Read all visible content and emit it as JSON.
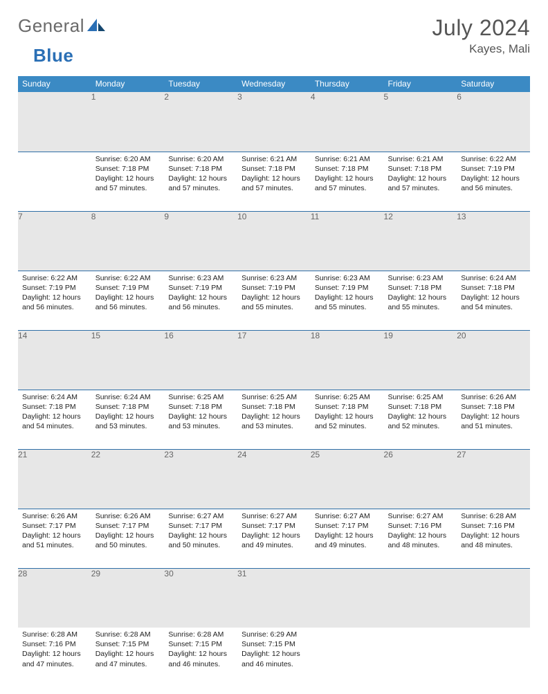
{
  "brand": {
    "part1": "General",
    "part2": "Blue"
  },
  "title": {
    "month_year": "July 2024",
    "location": "Kayes, Mali"
  },
  "colors": {
    "header_bg": "#3b8ac4",
    "daynum_bg": "#e7e7e7",
    "rule": "#2e6ea6",
    "text": "#222222",
    "muted": "#666666",
    "brand_blue": "#2a6fb5"
  },
  "day_headers": [
    "Sunday",
    "Monday",
    "Tuesday",
    "Wednesday",
    "Thursday",
    "Friday",
    "Saturday"
  ],
  "weeks": [
    [
      null,
      {
        "n": "1",
        "sr": "6:20 AM",
        "ss": "7:18 PM",
        "dl": "12 hours and 57 minutes."
      },
      {
        "n": "2",
        "sr": "6:20 AM",
        "ss": "7:18 PM",
        "dl": "12 hours and 57 minutes."
      },
      {
        "n": "3",
        "sr": "6:21 AM",
        "ss": "7:18 PM",
        "dl": "12 hours and 57 minutes."
      },
      {
        "n": "4",
        "sr": "6:21 AM",
        "ss": "7:18 PM",
        "dl": "12 hours and 57 minutes."
      },
      {
        "n": "5",
        "sr": "6:21 AM",
        "ss": "7:18 PM",
        "dl": "12 hours and 57 minutes."
      },
      {
        "n": "6",
        "sr": "6:22 AM",
        "ss": "7:19 PM",
        "dl": "12 hours and 56 minutes."
      }
    ],
    [
      {
        "n": "7",
        "sr": "6:22 AM",
        "ss": "7:19 PM",
        "dl": "12 hours and 56 minutes."
      },
      {
        "n": "8",
        "sr": "6:22 AM",
        "ss": "7:19 PM",
        "dl": "12 hours and 56 minutes."
      },
      {
        "n": "9",
        "sr": "6:23 AM",
        "ss": "7:19 PM",
        "dl": "12 hours and 56 minutes."
      },
      {
        "n": "10",
        "sr": "6:23 AM",
        "ss": "7:19 PM",
        "dl": "12 hours and 55 minutes."
      },
      {
        "n": "11",
        "sr": "6:23 AM",
        "ss": "7:19 PM",
        "dl": "12 hours and 55 minutes."
      },
      {
        "n": "12",
        "sr": "6:23 AM",
        "ss": "7:18 PM",
        "dl": "12 hours and 55 minutes."
      },
      {
        "n": "13",
        "sr": "6:24 AM",
        "ss": "7:18 PM",
        "dl": "12 hours and 54 minutes."
      }
    ],
    [
      {
        "n": "14",
        "sr": "6:24 AM",
        "ss": "7:18 PM",
        "dl": "12 hours and 54 minutes."
      },
      {
        "n": "15",
        "sr": "6:24 AM",
        "ss": "7:18 PM",
        "dl": "12 hours and 53 minutes."
      },
      {
        "n": "16",
        "sr": "6:25 AM",
        "ss": "7:18 PM",
        "dl": "12 hours and 53 minutes."
      },
      {
        "n": "17",
        "sr": "6:25 AM",
        "ss": "7:18 PM",
        "dl": "12 hours and 53 minutes."
      },
      {
        "n": "18",
        "sr": "6:25 AM",
        "ss": "7:18 PM",
        "dl": "12 hours and 52 minutes."
      },
      {
        "n": "19",
        "sr": "6:25 AM",
        "ss": "7:18 PM",
        "dl": "12 hours and 52 minutes."
      },
      {
        "n": "20",
        "sr": "6:26 AM",
        "ss": "7:18 PM",
        "dl": "12 hours and 51 minutes."
      }
    ],
    [
      {
        "n": "21",
        "sr": "6:26 AM",
        "ss": "7:17 PM",
        "dl": "12 hours and 51 minutes."
      },
      {
        "n": "22",
        "sr": "6:26 AM",
        "ss": "7:17 PM",
        "dl": "12 hours and 50 minutes."
      },
      {
        "n": "23",
        "sr": "6:27 AM",
        "ss": "7:17 PM",
        "dl": "12 hours and 50 minutes."
      },
      {
        "n": "24",
        "sr": "6:27 AM",
        "ss": "7:17 PM",
        "dl": "12 hours and 49 minutes."
      },
      {
        "n": "25",
        "sr": "6:27 AM",
        "ss": "7:17 PM",
        "dl": "12 hours and 49 minutes."
      },
      {
        "n": "26",
        "sr": "6:27 AM",
        "ss": "7:16 PM",
        "dl": "12 hours and 48 minutes."
      },
      {
        "n": "27",
        "sr": "6:28 AM",
        "ss": "7:16 PM",
        "dl": "12 hours and 48 minutes."
      }
    ],
    [
      {
        "n": "28",
        "sr": "6:28 AM",
        "ss": "7:16 PM",
        "dl": "12 hours and 47 minutes."
      },
      {
        "n": "29",
        "sr": "6:28 AM",
        "ss": "7:15 PM",
        "dl": "12 hours and 47 minutes."
      },
      {
        "n": "30",
        "sr": "6:28 AM",
        "ss": "7:15 PM",
        "dl": "12 hours and 46 minutes."
      },
      {
        "n": "31",
        "sr": "6:29 AM",
        "ss": "7:15 PM",
        "dl": "12 hours and 46 minutes."
      },
      null,
      null,
      null
    ]
  ],
  "labels": {
    "sunrise": "Sunrise:",
    "sunset": "Sunset:",
    "daylight": "Daylight:"
  },
  "typography": {
    "title_fontsize": 32,
    "location_fontsize": 17,
    "header_fontsize": 12,
    "daynum_fontsize": 12,
    "body_fontsize": 10.5
  }
}
